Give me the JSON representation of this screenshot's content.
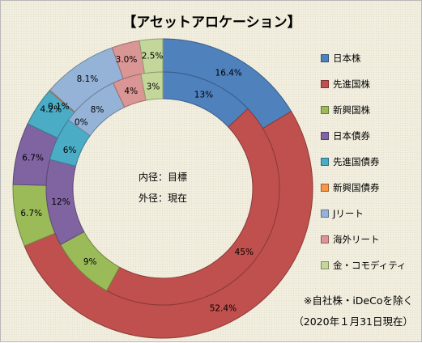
{
  "title": "【アセットアロケーション】",
  "center": {
    "inner_label": "内径：目標",
    "outer_label": "外径：現在"
  },
  "footnote": {
    "line1": "※自社株・iDeCoを除く",
    "line2": "（2020年１月31日現在）"
  },
  "legend": [
    {
      "name": "日本株",
      "color": "#4f81bd"
    },
    {
      "name": "先進国株",
      "color": "#c0504d"
    },
    {
      "name": "新興国株",
      "color": "#9bbb59"
    },
    {
      "name": "日本債券",
      "color": "#8064a2"
    },
    {
      "name": "先進国債券",
      "color": "#4bacc6"
    },
    {
      "name": "新興国債券",
      "color": "#f79646"
    },
    {
      "name": "Jリート",
      "color": "#95b3d7"
    },
    {
      "name": "海外リート",
      "color": "#da9694"
    },
    {
      "name": "金・コモディティ",
      "color": "#c4d79b"
    }
  ],
  "chart_data": {
    "type": "pie",
    "subtype": "doughnut",
    "title": "【アセットアロケーション】",
    "categories": [
      "日本株",
      "先進国株",
      "新興国株",
      "日本債券",
      "先進国債券",
      "新興国債券",
      "Jリート",
      "海外リート",
      "金・コモディティ"
    ],
    "series": [
      {
        "name": "外径：現在",
        "ring": "outer",
        "values": [
          16.4,
          52.4,
          6.7,
          6.7,
          4.2,
          0.1,
          8.1,
          3.0,
          2.5
        ],
        "labels": [
          "16.4%",
          "52.4%",
          "6.7%",
          "6.7%",
          "4.2%",
          "0.1%",
          "8.1%",
          "3.0%",
          "2.5%"
        ]
      },
      {
        "name": "内径：目標",
        "ring": "inner",
        "values": [
          13,
          45,
          9,
          12,
          6,
          0,
          8,
          4,
          3
        ],
        "labels": [
          "13%",
          "45%",
          "9%",
          "12%",
          "6%",
          "0%",
          "8%",
          "4%",
          "3%"
        ]
      }
    ],
    "legend_position": "right"
  }
}
